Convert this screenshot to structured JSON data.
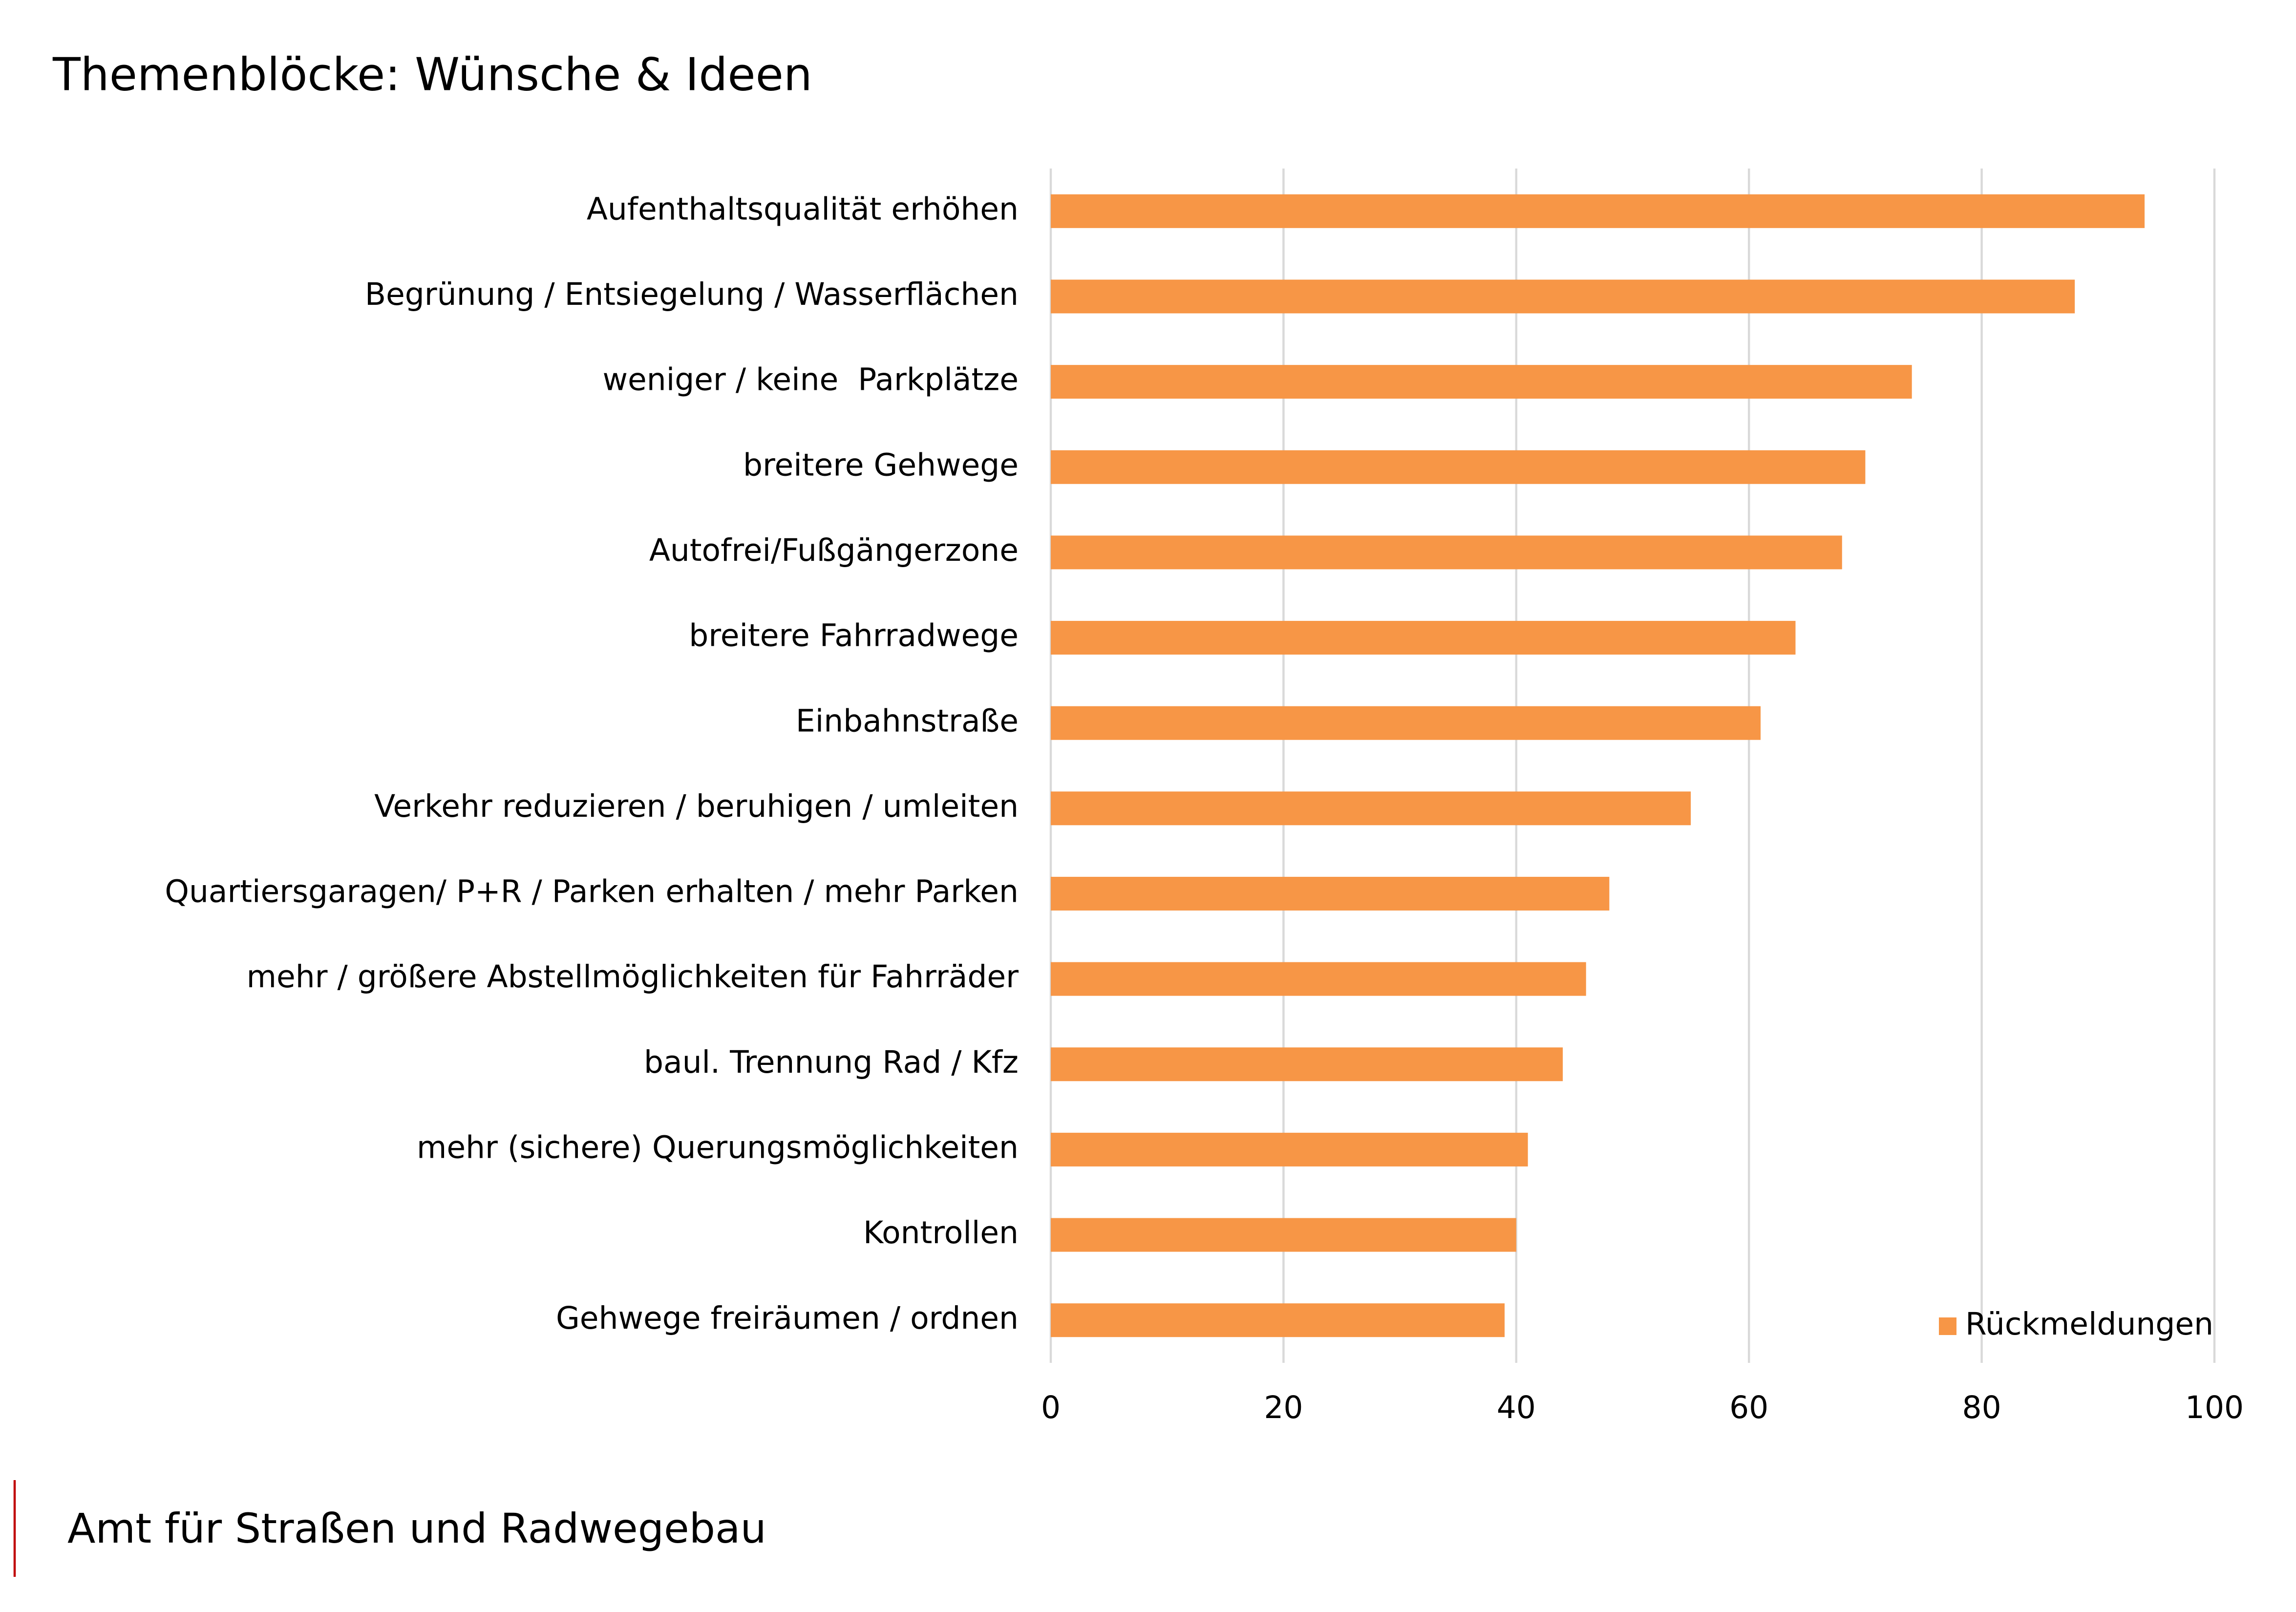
{
  "chart_data": {
    "type": "barh",
    "title": "Themenblöcke: Wünsche & Ideen",
    "categories": [
      "Aufenthaltsqualität erhöhen",
      "Begrünung / Entsiegelung / Wasserflächen",
      "weniger / keine  Parkplätze",
      "breitere Gehwege",
      "Autofrei/Fußgängerzone",
      "breitere Fahrradwege",
      "Einbahnstraße",
      "Verkehr reduzieren / beruhigen / umleiten",
      "Quartiersgaragen/ P+R / Parken erhalten / mehr Parken",
      "mehr / größere Abstellmöglichkeiten für Fahrräder",
      "baul. Trennung Rad / Kfz",
      "mehr (sichere) Querungsmöglichkeiten",
      "Kontrollen",
      "Gehwege freiräumen / ordnen"
    ],
    "series": [
      {
        "name": "Rückmeldungen",
        "color": "#f79646",
        "values": [
          94,
          88,
          74,
          70,
          68,
          64,
          61,
          55,
          48,
          46,
          44,
          41,
          40,
          39
        ]
      }
    ],
    "xlim": [
      0,
      100
    ],
    "xticks": [
      0,
      20,
      40,
      60,
      80,
      100
    ],
    "grid": true,
    "legend": "bottom-right"
  },
  "footer": "Amt für Straßen und Radwegebau"
}
